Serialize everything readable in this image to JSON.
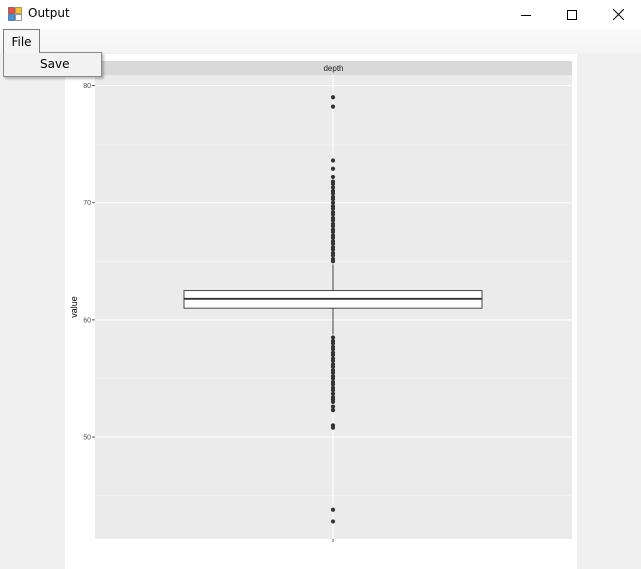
{
  "window": {
    "title": "Output",
    "icon": "app-icon"
  },
  "menu": {
    "file_label": "File",
    "items": [
      {
        "label": "Save"
      }
    ]
  },
  "chart_data": {
    "type": "box",
    "facet_label": "depth",
    "xlabel": "",
    "ylabel": "value",
    "ylim": [
      41.3,
      80.9
    ],
    "y_ticks": [
      50,
      60,
      70,
      80
    ],
    "box": {
      "q1": 61.0,
      "median": 61.8,
      "q3": 62.5,
      "whisker_low": 58.75,
      "whisker_high": 64.75
    },
    "outliers_high": [
      79.0,
      78.2,
      73.6,
      72.9,
      72.2,
      71.8,
      71.6,
      71.3,
      71.0,
      70.8,
      70.5,
      70.3,
      70.0,
      69.7,
      69.5,
      69.2,
      69.0,
      68.7,
      68.5,
      68.2,
      68.0,
      67.7,
      67.5,
      67.2,
      67.0,
      66.7,
      66.5,
      66.2,
      66.0,
      65.7,
      65.5,
      65.2,
      65.0
    ],
    "outliers_low": [
      58.5,
      58.2,
      58.0,
      57.7,
      57.5,
      57.2,
      57.0,
      56.7,
      56.5,
      56.2,
      56.0,
      55.7,
      55.5,
      55.2,
      55.0,
      54.7,
      54.5,
      54.2,
      54.0,
      53.7,
      53.4,
      53.2,
      53.0,
      52.6,
      52.3,
      51.0,
      50.8,
      43.8,
      42.8
    ]
  }
}
